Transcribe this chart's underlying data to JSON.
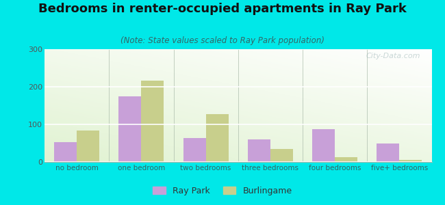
{
  "title": "Bedrooms in renter-occupied apartments in Ray Park",
  "subtitle": "(Note: State values scaled to Ray Park population)",
  "categories": [
    "no bedroom",
    "one bedroom",
    "two bedrooms",
    "three bedrooms",
    "four bedrooms",
    "five+ bedrooms"
  ],
  "ray_park": [
    52,
    175,
    63,
    60,
    87,
    50
  ],
  "burlingame": [
    83,
    217,
    128,
    35,
    12,
    6
  ],
  "ray_park_color": "#c8a0d8",
  "burlingame_color": "#c8cf8c",
  "background_outer": "#00e8e8",
  "ylim": [
    0,
    300
  ],
  "yticks": [
    0,
    100,
    200,
    300
  ],
  "bar_width": 0.35,
  "watermark": "City-Data.com",
  "legend_ray_park": "Ray Park",
  "legend_burlingame": "Burlingame",
  "title_fontsize": 13,
  "subtitle_fontsize": 8.5
}
